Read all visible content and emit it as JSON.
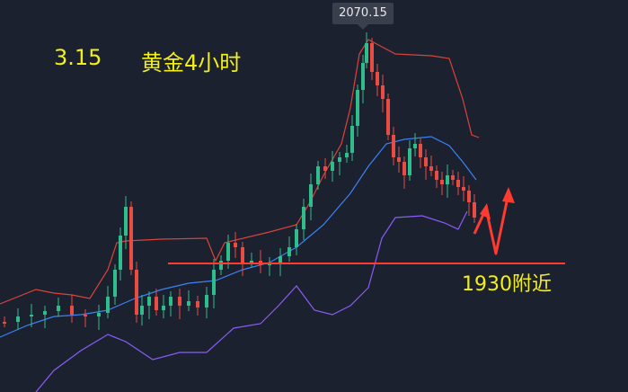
{
  "header": {
    "date": "3.15",
    "title": "黄金4小时"
  },
  "colors": {
    "background": "#1c2130",
    "up": "#2fbd8b",
    "down": "#ea4b43",
    "bb_upper": "#d9443a",
    "bb_middle": "#3b82f6",
    "bb_lower": "#8b5cf6",
    "support": "#ff3b30",
    "text_accent": "#f2ef1b"
  },
  "chart_data": {
    "type": "candlestick",
    "peak_label": "2070.15",
    "support_label": "1930附近",
    "support_level": 1930,
    "indicators": [
      "bollinger-upper",
      "bollinger-middle",
      "bollinger-lower"
    ],
    "projection": "dip toward support then rebound"
  }
}
